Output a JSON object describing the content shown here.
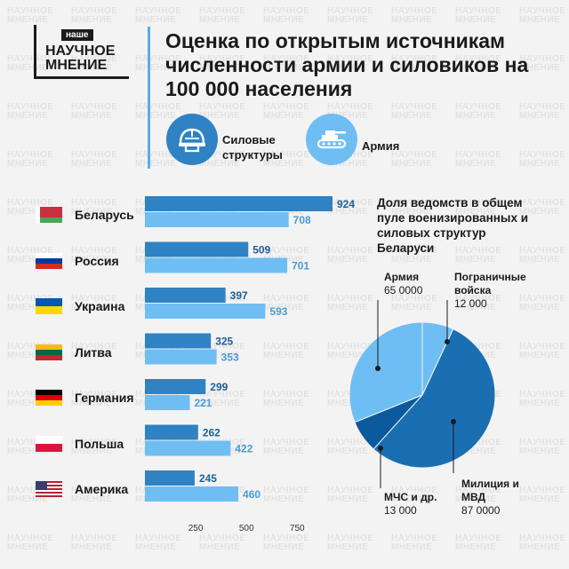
{
  "logo": {
    "top": "наше",
    "line1": "НАУЧНОЕ",
    "line2": "МНЕНИЕ"
  },
  "title": "Оценка по открытым источникам численности армии и силовиков на 100 000 населения",
  "legend": {
    "security": "Силовые структуры",
    "army": "Армия"
  },
  "colors": {
    "dark": "#2f82c4",
    "light": "#6fbef3",
    "pie_dark": "#1a6fb2",
    "pie_navy": "#0c5a9e",
    "pie_light": "#6fbef3"
  },
  "chart_data": [
    {
      "type": "bar",
      "orientation": "horizontal",
      "categories": [
        "Беларусь",
        "Россия",
        "Украина",
        "Литва",
        "Германия",
        "Польша",
        "Америка"
      ],
      "series": [
        {
          "name": "Силовые структуры",
          "values": [
            924,
            509,
            397,
            325,
            299,
            262,
            245
          ]
        },
        {
          "name": "Армия",
          "values": [
            708,
            701,
            593,
            353,
            221,
            422,
            460
          ]
        }
      ],
      "xticks": [
        250,
        500,
        750
      ],
      "xlim": [
        0,
        924
      ]
    },
    {
      "type": "pie",
      "title": "Доля ведомств в общем пуле военизированных и силовых структур Беларуси",
      "slices": [
        {
          "label": "Армия",
          "value_text": "65 0000",
          "value": 65000
        },
        {
          "label": "Пограничные войска",
          "value_text": "12 000",
          "value": 12000
        },
        {
          "label": "Милиция и МВД",
          "value_text": "87 0000",
          "value": 87000
        },
        {
          "label": "МЧС и др.",
          "value_text": "13 000",
          "value": 13000
        }
      ]
    }
  ]
}
